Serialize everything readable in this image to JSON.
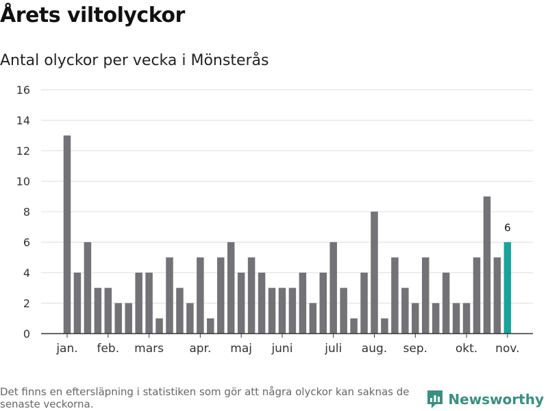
{
  "header": {
    "title": "Årets viltolyckor",
    "subtitle": "Antal olyckor per vecka i Mönsterås"
  },
  "footer": {
    "note": "Det finns en eftersläpning i statistiken som gör att några olyckor kan saknas de senaste veckorna.",
    "brand": "Newsworthy"
  },
  "colors": {
    "bar": "#737277",
    "highlight": "#19a49a",
    "grid": "#dddddd",
    "axis": "#333333",
    "brand": "#3a8f7f"
  },
  "chart_data": {
    "type": "bar",
    "title": "Antal olyckor per vecka i Mönsterås",
    "xlabel": "",
    "ylabel": "",
    "ylim": [
      0,
      16
    ],
    "yticks": [
      0,
      2,
      4,
      6,
      8,
      10,
      12,
      14,
      16
    ],
    "grid": true,
    "values": [
      13,
      4,
      6,
      3,
      3,
      2,
      2,
      4,
      4,
      1,
      5,
      3,
      2,
      5,
      1,
      5,
      6,
      4,
      5,
      4,
      3,
      3,
      3,
      4,
      2,
      4,
      6,
      3,
      1,
      4,
      8,
      1,
      5,
      3,
      2,
      5,
      2,
      4,
      2,
      2,
      5,
      9,
      5,
      6
    ],
    "month_labels": [
      {
        "label": "jan.",
        "index": 0
      },
      {
        "label": "feb.",
        "index": 4
      },
      {
        "label": "mars",
        "index": 8
      },
      {
        "label": "apr.",
        "index": 13
      },
      {
        "label": "maj",
        "index": 17
      },
      {
        "label": "juni",
        "index": 21
      },
      {
        "label": "juli",
        "index": 26
      },
      {
        "label": "aug.",
        "index": 30
      },
      {
        "label": "sep.",
        "index": 34
      },
      {
        "label": "okt.",
        "index": 39
      },
      {
        "label": "nov.",
        "index": 43
      }
    ],
    "highlight_index": 43,
    "highlight_label": "6"
  }
}
